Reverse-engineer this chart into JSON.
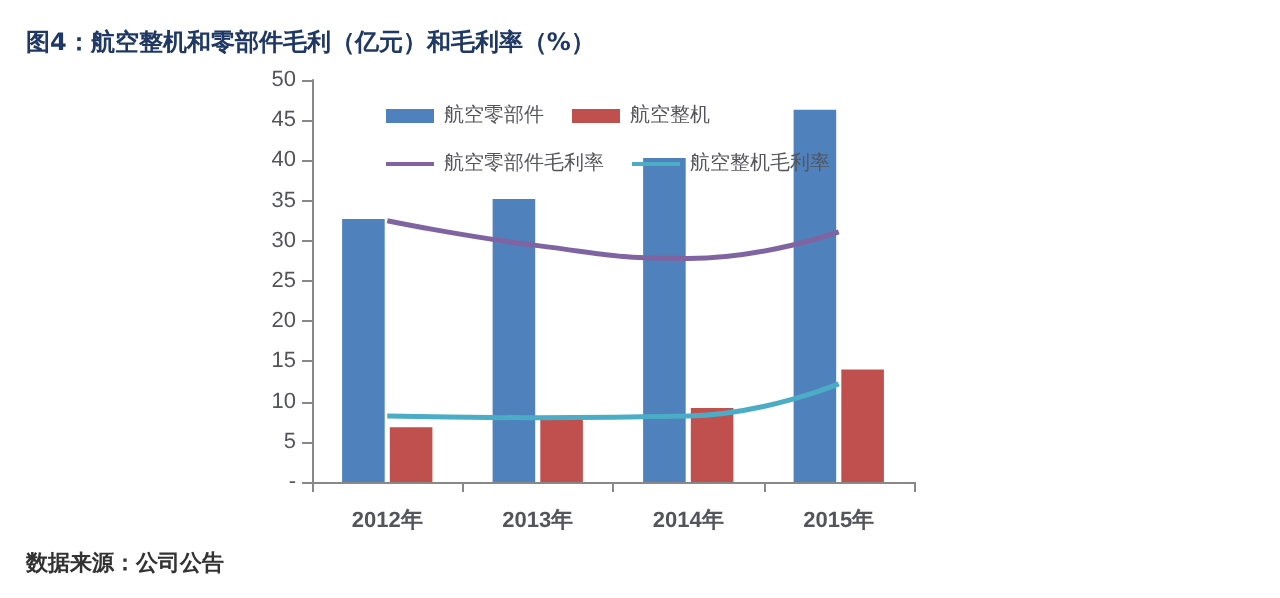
{
  "chart_data": {
    "type": "bar",
    "title": "图4：航空整机和零部件毛利（亿元）和毛利率（%）",
    "categories": [
      "2012年",
      "2013年",
      "2014年",
      "2015年"
    ],
    "series": [
      {
        "name": "航空零部件",
        "color": "#4f81bd",
        "values": [
          32.7,
          35.2,
          40.3,
          46.3
        ]
      },
      {
        "name": "航空整机",
        "color": "#c0504d",
        "values": [
          6.8,
          7.9,
          9.2,
          14.0
        ]
      },
      {
        "name": "航空零部件毛利率",
        "type": "line",
        "color": "#8064a2",
        "values": [
          32.5,
          29.4,
          27.8,
          31.1
        ]
      },
      {
        "name": "航空整机毛利率",
        "type": "line",
        "color": "#4bacc6",
        "values": [
          8.2,
          8.0,
          8.2,
          12.2
        ]
      }
    ],
    "ylim": [
      0,
      50
    ],
    "yticks": [
      {
        "value": 0,
        "label": "-"
      },
      5,
      10,
      15,
      20,
      25,
      30,
      35,
      40,
      45,
      50
    ],
    "grid": false,
    "legend": "top",
    "marker": "none",
    "annotations": [
      "数据来源：公司公告"
    ]
  }
}
